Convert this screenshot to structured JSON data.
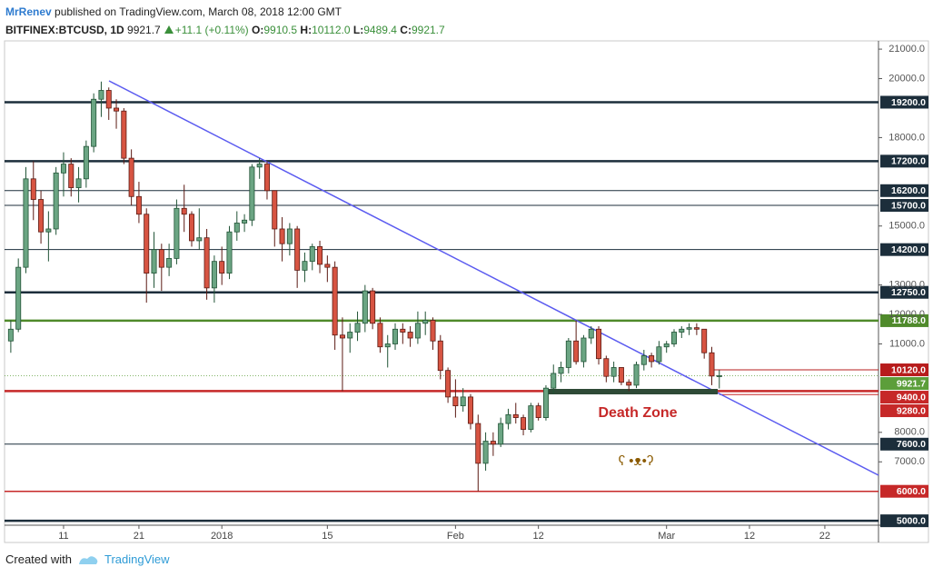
{
  "chart_data": {
    "type": "candlestick",
    "header": {
      "author": "MrRenev",
      "published": "published on TradingView.com, March 08, 2018 12:00 GMT",
      "symbol": "BITFINEX:BTCUSD, 1D",
      "last": "9921.7",
      "change": "+11.1 (+0.11%)",
      "o_label": "O:",
      "o": "9910.5",
      "h_label": "H:",
      "h": "10112.0",
      "l_label": "L:",
      "l": "9489.4",
      "c_label": "C:",
      "c": "9921.7"
    },
    "x": [
      3,
      4,
      5,
      6,
      7,
      8,
      9,
      10,
      11,
      12,
      13,
      14,
      15,
      16,
      17,
      18,
      19,
      20,
      21,
      22,
      23,
      24,
      25,
      26,
      27,
      28,
      29,
      30,
      31,
      32,
      33,
      34,
      35,
      36,
      37,
      38,
      39,
      40,
      41,
      42,
      43,
      44,
      45,
      46,
      47,
      48,
      49,
      50,
      51,
      52,
      53,
      54,
      55,
      56,
      57,
      58,
      59,
      60,
      61,
      62,
      63,
      64,
      65,
      66,
      67,
      68,
      69,
      70,
      71,
      72,
      73,
      74,
      75,
      76,
      77,
      78,
      79,
      80,
      81,
      82,
      83,
      84,
      85,
      86,
      87,
      88,
      89,
      90,
      91,
      92,
      93,
      94,
      95,
      96,
      97
    ],
    "open": [
      11100,
      11500,
      13600,
      16600,
      15900,
      14800,
      14900,
      16800,
      17100,
      16300,
      16600,
      17700,
      19300,
      19600,
      19000,
      18900,
      17300,
      16000,
      15400,
      13400,
      14200,
      13600,
      13900,
      15600,
      15400,
      14500,
      14600,
      12900,
      13800,
      13400,
      14800,
      15100,
      15200,
      17000,
      17100,
      16200,
      14900,
      14400,
      14900,
      13500,
      13800,
      14300,
      13700,
      13600,
      11300,
      11200,
      11400,
      11700,
      12800,
      11700,
      10900,
      11000,
      11500,
      11400,
      11200,
      11700,
      11800,
      11100,
      10100,
      9200,
      8900,
      9200,
      8300,
      6950,
      7700,
      7600,
      8300,
      8600,
      8500,
      8100,
      8900,
      8500,
      9500,
      10000,
      10200,
      11100,
      10400,
      11200,
      11500,
      10500,
      9900,
      10200,
      9700,
      9600,
      10300,
      10600,
      10400,
      10900,
      11000,
      11400,
      11500,
      11550,
      11500,
      10700,
      9910.5
    ],
    "high": [
      11800,
      13900,
      17000,
      17200,
      16200,
      15500,
      17000,
      17500,
      17300,
      17000,
      17900,
      19500,
      19900,
      19700,
      19300,
      19000,
      17600,
      16500,
      15600,
      14800,
      14400,
      14400,
      15900,
      16400,
      15500,
      15600,
      14900,
      14000,
      14300,
      15000,
      15500,
      15400,
      17100,
      17300,
      17200,
      16200,
      15300,
      15100,
      15000,
      14100,
      14400,
      14500,
      14000,
      13800,
      11900,
      11700,
      12100,
      13000,
      12900,
      11900,
      11300,
      11700,
      11700,
      11600,
      12100,
      12100,
      11900,
      11300,
      10200,
      9800,
      9500,
      9300,
      8600,
      8000,
      8000,
      8500,
      8800,
      9000,
      8600,
      9000,
      9000,
      9600,
      10300,
      10400,
      11200,
      11800,
      11300,
      11600,
      11600,
      10600,
      10400,
      10200,
      9800,
      10400,
      10800,
      10700,
      11100,
      11100,
      11500,
      11600,
      11700,
      11700,
      11500,
      10900,
      10112
    ],
    "low": [
      10700,
      11400,
      13400,
      15200,
      14400,
      13800,
      14700,
      16000,
      16000,
      15800,
      16300,
      17500,
      18700,
      18600,
      18300,
      17100,
      15700,
      15100,
      12400,
      12900,
      12800,
      13300,
      13700,
      14800,
      14300,
      14200,
      12500,
      12400,
      13000,
      13200,
      14500,
      14800,
      15000,
      16600,
      15900,
      14300,
      13800,
      14000,
      12900,
      13100,
      13500,
      13400,
      13100,
      10800,
      9400,
      10700,
      11100,
      11400,
      11500,
      10700,
      10200,
      10800,
      11000,
      10900,
      11000,
      11300,
      10800,
      9800,
      9000,
      8500,
      8700,
      8100,
      6000,
      6700,
      7200,
      7500,
      8100,
      8300,
      7900,
      8000,
      8400,
      8400,
      9300,
      9700,
      10000,
      10300,
      10200,
      11000,
      10300,
      9700,
      9700,
      9600,
      9400,
      9500,
      10100,
      10200,
      10300,
      10700,
      10900,
      11200,
      11300,
      11300,
      10500,
      9600,
      9489.4
    ],
    "close": [
      11500,
      13600,
      16600,
      15900,
      14800,
      14900,
      16800,
      17100,
      16300,
      16600,
      17700,
      19300,
      19600,
      19000,
      18900,
      17300,
      16000,
      15400,
      13400,
      14200,
      13600,
      13900,
      15600,
      15400,
      14500,
      14600,
      12900,
      13800,
      13400,
      14800,
      15100,
      15200,
      17000,
      17100,
      16200,
      14900,
      14400,
      14900,
      13500,
      13800,
      14300,
      13700,
      13600,
      11300,
      11200,
      11400,
      11700,
      12800,
      11700,
      10900,
      11000,
      11500,
      11400,
      11200,
      11700,
      11800,
      11100,
      10100,
      9200,
      8900,
      9200,
      8300,
      6950,
      7700,
      7600,
      8300,
      8600,
      8500,
      8100,
      8900,
      8500,
      9500,
      10000,
      10200,
      11100,
      10400,
      11200,
      11500,
      10500,
      9900,
      10200,
      9700,
      9600,
      10300,
      10600,
      10400,
      10900,
      11000,
      11400,
      11500,
      11550,
      11500,
      10700,
      9910.5,
      9921.7
    ],
    "up_color": "#6ba583",
    "down_color": "#d75442",
    "xlim": [
      2.17,
      118.12
    ],
    "ylim": [
      4850,
      21280
    ],
    "xticks": [
      {
        "value": 10,
        "label": "11"
      },
      {
        "value": 20,
        "label": "21"
      },
      {
        "value": 31,
        "label": "2018"
      },
      {
        "value": 45,
        "label": "15"
      },
      {
        "value": 62,
        "label": "Feb"
      },
      {
        "value": 73,
        "label": "12"
      },
      {
        "value": 90,
        "label": "Mar"
      },
      {
        "value": 101,
        "label": "12"
      },
      {
        "value": 111,
        "label": "22"
      }
    ],
    "yticks": [
      {
        "value": 21000,
        "label": "21000.0"
      },
      {
        "value": 20000,
        "label": "20000.0"
      },
      {
        "value": 18000,
        "label": "18000.0"
      },
      {
        "value": 15000,
        "label": "15000.0"
      },
      {
        "value": 13000,
        "label": "13000.0"
      },
      {
        "value": 12000,
        "label": "12000.0"
      },
      {
        "value": 11000,
        "label": "11000.0"
      },
      {
        "value": 8000,
        "label": "8000.0"
      },
      {
        "value": 7000,
        "label": "7000.0"
      }
    ],
    "levels": [
      {
        "value": 19200,
        "label": "19200.0",
        "color": "#1c2e3b",
        "width": 2.5
      },
      {
        "value": 17200,
        "label": "17200.0",
        "color": "#1c2e3b",
        "width": 2.5
      },
      {
        "value": 16200,
        "label": "16200.0",
        "color": "#1c2e3b",
        "width": 1
      },
      {
        "value": 15700,
        "label": "15700.0",
        "color": "#1c2e3b",
        "width": 1
      },
      {
        "value": 14200,
        "label": "14200.0",
        "color": "#1c2e3b",
        "width": 1
      },
      {
        "value": 12750,
        "label": "12750.0",
        "color": "#1c2e3b",
        "width": 2.5
      },
      {
        "value": 11788,
        "label": "11788.0",
        "color": "#4f8a2b",
        "width": 2.5
      },
      {
        "value": 10120,
        "label": "10120.0",
        "color": "#b71c1c",
        "width": 1,
        "x_from": 96
      },
      {
        "value": 9921.7,
        "label": "9921.7",
        "color": "#5c9e3a",
        "width": 0.8,
        "dotted": true
      },
      {
        "value": 9400,
        "label": "9400.0",
        "color": "#c62828",
        "width": 2.5
      },
      {
        "value": 9280,
        "label": "9280.0",
        "color": "#c62828",
        "width": 1,
        "x_from": 97
      },
      {
        "value": 7600,
        "label": "7600.0",
        "color": "#1c2e3b",
        "width": 1
      },
      {
        "value": 6000,
        "label": "6000.0",
        "color": "#c62828",
        "width": 1.5
      },
      {
        "value": 5000,
        "label": "5000.0",
        "color": "#1c2e3b",
        "width": 2.5
      }
    ],
    "annotations": [
      "Death Zone",
      "ʕ •ᴥ•ʔ"
    ],
    "footer": {
      "created": "Created with",
      "brand": "TradingView"
    }
  }
}
